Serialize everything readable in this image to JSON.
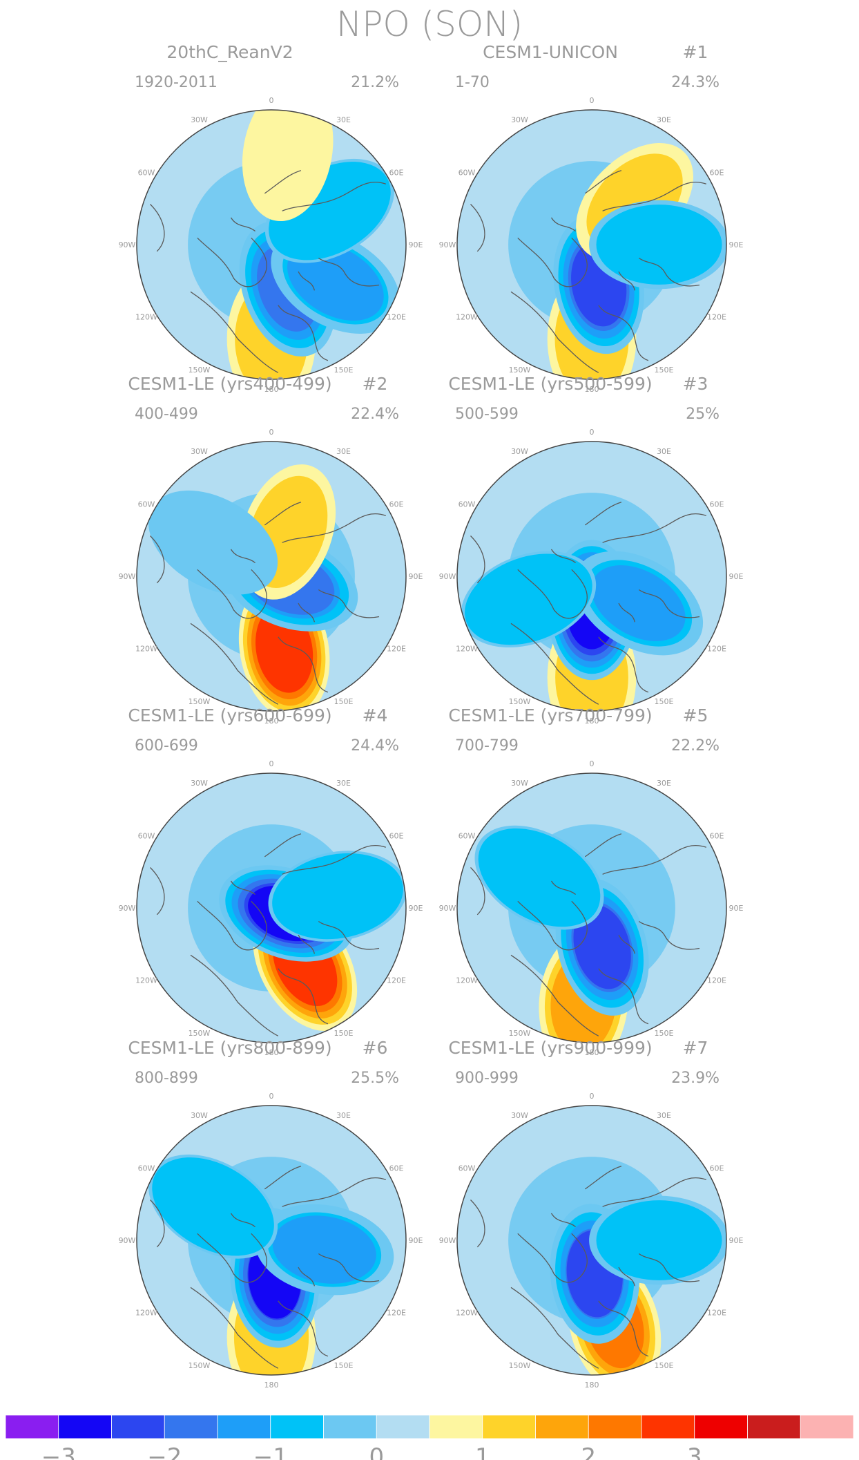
{
  "title": "NPO (SON)",
  "panels": [
    {
      "name": "20thC_ReanV2",
      "number": "",
      "years": "1920-2011",
      "variance": "21.2%"
    },
    {
      "name": "CESM1-UNICON",
      "number": "#1",
      "years": "1-70",
      "variance": "24.3%"
    },
    {
      "name": "CESM1-LE (yrs400-499)",
      "number": "#2",
      "years": "400-499",
      "variance": "22.4%"
    },
    {
      "name": "CESM1-LE (yrs500-599)",
      "number": "#3",
      "years": "500-599",
      "variance": "25%"
    },
    {
      "name": "CESM1-LE (yrs600-699)",
      "number": "#4",
      "years": "600-699",
      "variance": "24.4%"
    },
    {
      "name": "CESM1-LE (yrs700-799)",
      "number": "#5",
      "years": "700-799",
      "variance": "22.2%"
    },
    {
      "name": "CESM1-LE (yrs800-899)",
      "number": "#6",
      "years": "800-899",
      "variance": "25.5%"
    },
    {
      "name": "CESM1-LE (yrs900-999)",
      "number": "#7",
      "years": "900-999",
      "variance": "23.9%"
    }
  ],
  "longitude_labels": [
    "180",
    "150E",
    "120E",
    "90E",
    "60E",
    "30E",
    "0",
    "30W",
    "60W",
    "90W",
    "120W",
    "150W"
  ],
  "colorbar": {
    "colors": [
      "#8a1ef0",
      "#1406f5",
      "#2c46f0",
      "#3476ee",
      "#1e9ef8",
      "#00c2f7",
      "#6cc8f2",
      "#b3ddf2",
      "#fdf6a0",
      "#fed32a",
      "#fea50b",
      "#fe7800",
      "#fe3400",
      "#ee0000",
      "#ca1d1d",
      "#fcb2b2"
    ],
    "tick_labels": [
      "-3",
      "-2",
      "-1",
      "0",
      "1",
      "2",
      "3"
    ]
  },
  "anomalies": [
    [
      {
        "lon": 180,
        "r": 0.7,
        "v": 1.2
      },
      {
        "lon": 160,
        "r": 0.35,
        "v": -2.0
      },
      {
        "lon": 120,
        "r": 0.55,
        "v": -1.2
      },
      {
        "lon": 60,
        "r": 0.5,
        "v": -0.6
      },
      {
        "lon": 10,
        "r": 0.7,
        "v": 0.6
      }
    ],
    [
      {
        "lon": 180,
        "r": 0.7,
        "v": 1.3
      },
      {
        "lon": 170,
        "r": 0.3,
        "v": -2.3
      },
      {
        "lon": 45,
        "r": 0.45,
        "v": 1.2
      },
      {
        "lon": 90,
        "r": 0.5,
        "v": -0.7
      }
    ],
    [
      {
        "lon": 170,
        "r": 0.55,
        "v": 2.8
      },
      {
        "lon": 110,
        "r": 0.15,
        "v": -1.8
      },
      {
        "lon": 20,
        "r": 0.35,
        "v": 1.3
      },
      {
        "lon": 300,
        "r": 0.5,
        "v": -0.5
      }
    ],
    [
      {
        "lon": 180,
        "r": 0.75,
        "v": 1.2
      },
      {
        "lon": 180,
        "r": 0.25,
        "v": -3.0
      },
      {
        "lon": 120,
        "r": 0.4,
        "v": -1.3
      },
      {
        "lon": 250,
        "r": 0.5,
        "v": -0.6
      }
    ],
    [
      {
        "lon": 150,
        "r": 0.5,
        "v": 2.7
      },
      {
        "lon": 110,
        "r": 0.12,
        "v": -2.8
      },
      {
        "lon": 80,
        "r": 0.5,
        "v": -0.6
      }
    ],
    [
      {
        "lon": 185,
        "r": 0.7,
        "v": 1.8
      },
      {
        "lon": 165,
        "r": 0.3,
        "v": -2.2
      },
      {
        "lon": 300,
        "r": 0.45,
        "v": -0.6
      }
    ],
    [
      {
        "lon": 180,
        "r": 0.72,
        "v": 1.4
      },
      {
        "lon": 175,
        "r": 0.28,
        "v": -2.6
      },
      {
        "lon": 100,
        "r": 0.4,
        "v": -1.2
      },
      {
        "lon": 300,
        "r": 0.5,
        "v": -0.6
      }
    ],
    [
      {
        "lon": 165,
        "r": 0.65,
        "v": 2.0
      },
      {
        "lon": 175,
        "r": 0.25,
        "v": -2.1
      },
      {
        "lon": 90,
        "r": 0.5,
        "v": -0.7
      }
    ]
  ]
}
